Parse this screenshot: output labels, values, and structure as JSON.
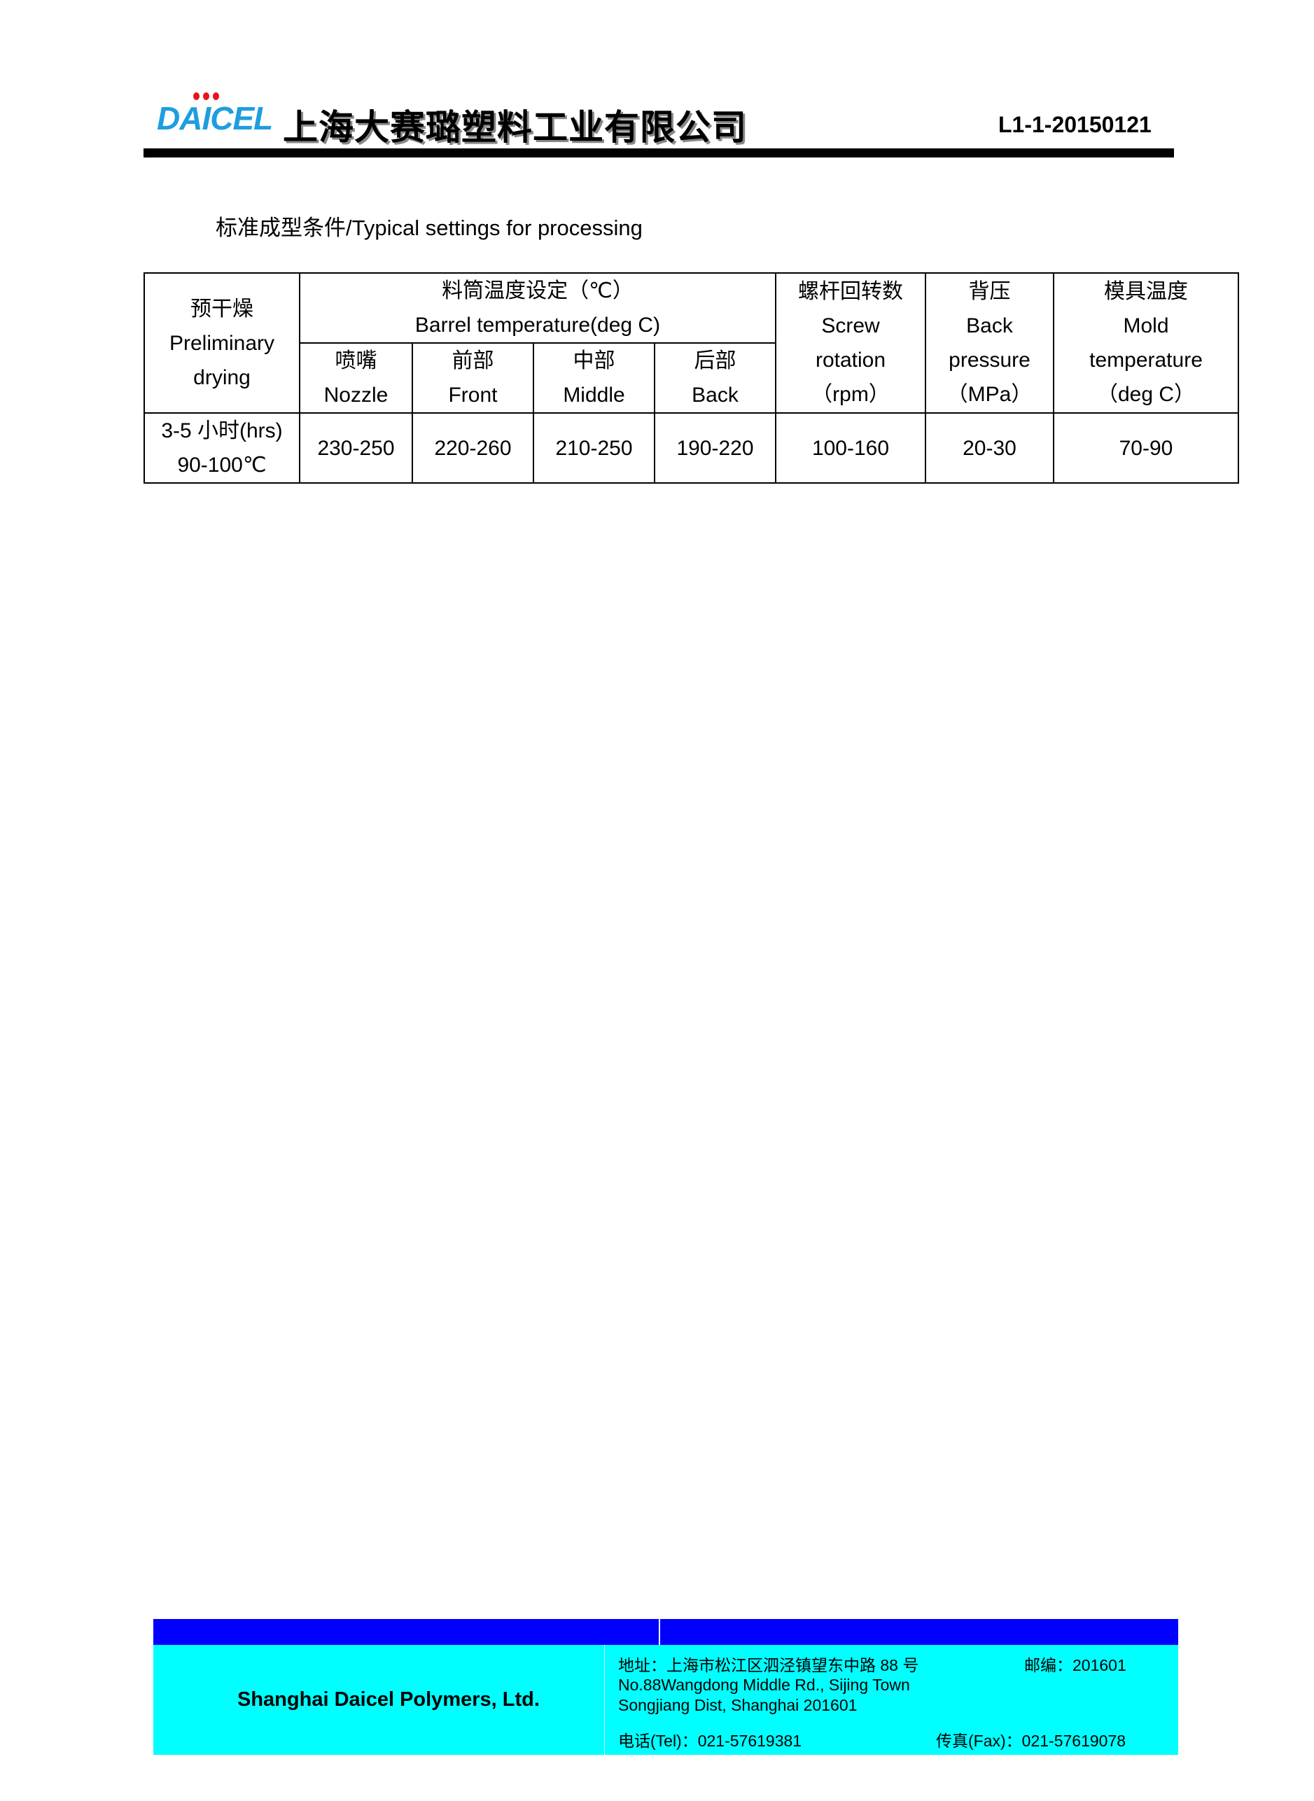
{
  "header": {
    "logo_text": "DAICEL",
    "company_cn": "上海大赛璐塑料工业有限公司",
    "doc_id": "L1-1-20150121"
  },
  "section_title": "标准成型条件/Typical settings for processing",
  "table": {
    "headers": {
      "drying": [
        "预干燥",
        "Preliminary",
        "drying"
      ],
      "barrel": [
        "料筒温度设定（℃）",
        "Barrel temperature(deg C)"
      ],
      "barrel_sub": [
        {
          "cn": "喷嘴",
          "en": "Nozzle"
        },
        {
          "cn": "前部",
          "en": "Front"
        },
        {
          "cn": "中部",
          "en": "Middle"
        },
        {
          "cn": "后部",
          "en": "Back"
        }
      ],
      "screw": [
        "螺杆回转数",
        "Screw",
        "rotation",
        "（rpm）"
      ],
      "back_pressure": [
        "背压",
        "Back",
        "pressure",
        "（MPa）"
      ],
      "mold": [
        "模具温度",
        "Mold",
        "temperature",
        "（deg C）"
      ]
    },
    "row": {
      "drying": [
        "3-5 小时(hrs)",
        "90-100℃"
      ],
      "values": [
        "230-250",
        "220-260",
        "210-250",
        "190-220",
        "100-160",
        "20-30",
        "70-90"
      ]
    }
  },
  "footer": {
    "company_en": "Shanghai Daicel Polymers, Ltd.",
    "address_cn": "地址：上海市松江区泗泾镇望东中路 88 号",
    "postcode": "邮编：201601",
    "address_en_1": "No.88Wangdong Middle Rd., Sijing Town",
    "address_en_2": "Songjiang Dist, Shanghai 201601",
    "tel": "电话(Tel)：021-57619381",
    "fax": "传真(Fax)：021-57619078",
    "colors": {
      "bar": "#0000ff",
      "panel": "#00ffff"
    }
  }
}
